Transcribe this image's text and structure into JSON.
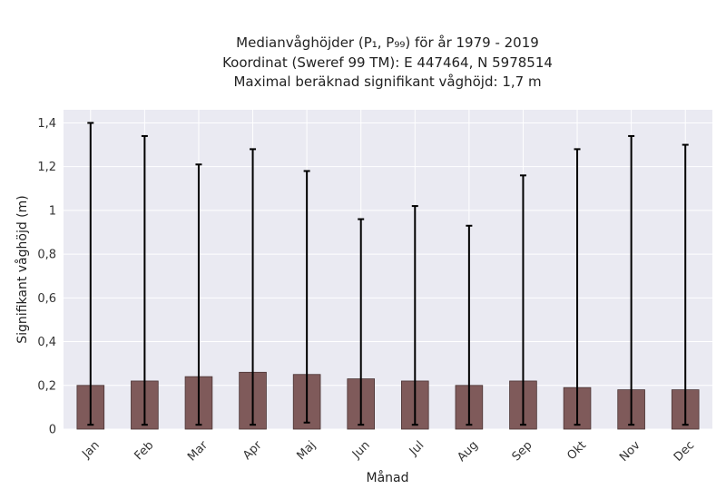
{
  "chart_data": {
    "type": "bar",
    "title_lines": [
      "Medianvåghöjder (P₁, P₉₉) för år 1979 - 2019",
      "Koordinat (Sweref 99 TM): E 447464, N 5978514",
      "Maximal beräknad signifikant våghöjd: 1,7 m"
    ],
    "xlabel": "Månad",
    "ylabel": "Signifikant våghöjd (m)",
    "categories": [
      "Jan",
      "Feb",
      "Mar",
      "Apr",
      "Maj",
      "Jun",
      "Jul",
      "Aug",
      "Sep",
      "Okt",
      "Nov",
      "Dec"
    ],
    "values": [
      0.2,
      0.22,
      0.24,
      0.26,
      0.25,
      0.23,
      0.22,
      0.2,
      0.22,
      0.19,
      0.18,
      0.18
    ],
    "p1": [
      0.02,
      0.02,
      0.02,
      0.02,
      0.03,
      0.02,
      0.02,
      0.02,
      0.02,
      0.02,
      0.02,
      0.02
    ],
    "p99": [
      1.4,
      1.34,
      1.21,
      1.28,
      1.18,
      0.96,
      1.02,
      0.93,
      1.16,
      1.28,
      1.34,
      1.3
    ],
    "ylim": [
      0,
      1.46
    ],
    "yticks": [
      0,
      0.2,
      0.4,
      0.6,
      0.8,
      1.0,
      1.2,
      1.4
    ],
    "ytick_labels": [
      "0",
      "0,2",
      "0,4",
      "0,6",
      "0,8",
      "1",
      "1,2",
      "1,4"
    ],
    "grid": true,
    "colors": {
      "bar": "#7f5a5a",
      "bar_edge": "#4a3434",
      "errorbar": "#000000",
      "plot_background": "#eaeaf2",
      "grid": "#ffffff"
    }
  }
}
